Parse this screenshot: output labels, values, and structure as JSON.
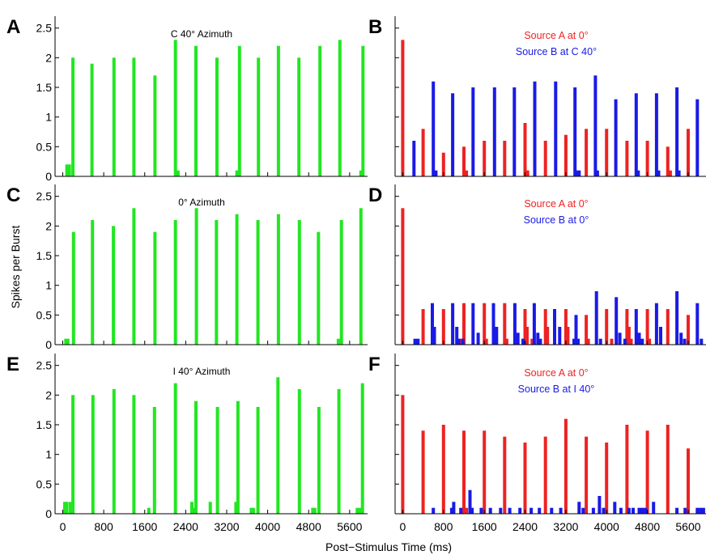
{
  "figure": {
    "ylabel": "Spikes per Burst",
    "xlabel": "Post−Stimulus Time (ms)",
    "x_ticks": [
      "0",
      "800",
      "1600",
      "2400",
      "3200",
      "4000",
      "4800",
      "5600"
    ],
    "y_ticks": [
      "0",
      "0.5",
      "1",
      "1.5",
      "2",
      "2.5"
    ],
    "colors": {
      "green": "#22e622",
      "red": "#ee2222",
      "blue": "#1a1ae6",
      "axis": "#000000"
    }
  },
  "chart_data": [
    {
      "panel": "A",
      "type": "bar",
      "title": "C 40° Azimuth",
      "xlim": [
        -150,
        5950
      ],
      "ylim": [
        0,
        2.7
      ],
      "series": [
        {
          "color": "#22e622",
          "values": [
            [
              80,
              0.2
            ],
            [
              130,
              0.2
            ],
            [
              200,
              2.0
            ],
            [
              570,
              1.9
            ],
            [
              1000,
              2.0
            ],
            [
              1390,
              2.0
            ],
            [
              1800,
              1.7
            ],
            [
              2200,
              2.3
            ],
            [
              2250,
              0.1
            ],
            [
              2600,
              2.2
            ],
            [
              3010,
              2.0
            ],
            [
              3400,
              0.1
            ],
            [
              3450,
              2.2
            ],
            [
              3820,
              2.0
            ],
            [
              4210,
              2.2
            ],
            [
              4610,
              2.0
            ],
            [
              5020,
              2.2
            ],
            [
              5410,
              2.3
            ],
            [
              5820,
              0.1
            ],
            [
              5860,
              2.2
            ]
          ]
        }
      ]
    },
    {
      "panel": "B",
      "type": "bar",
      "title": "",
      "legend": [
        "Source A at 0°",
        "Source B at C 40°"
      ],
      "xlim": [
        -150,
        5950
      ],
      "ylim": [
        0,
        2.7
      ],
      "series": [
        {
          "color": "#ee2222",
          "values": [
            [
              0,
              2.3
            ],
            [
              400,
              0.8
            ],
            [
              800,
              0.4
            ],
            [
              1200,
              0.5
            ],
            [
              1250,
              0.1
            ],
            [
              1600,
              0.6
            ],
            [
              2000,
              0.6
            ],
            [
              2400,
              0.9
            ],
            [
              2450,
              0.1
            ],
            [
              2800,
              0.6
            ],
            [
              3200,
              0.7
            ],
            [
              3600,
              0.8
            ],
            [
              4000,
              0.8
            ],
            [
              4400,
              0.6
            ],
            [
              4800,
              0.6
            ],
            [
              5200,
              0.5
            ],
            [
              5250,
              0.1
            ],
            [
              5600,
              0.8
            ]
          ]
        },
        {
          "color": "#1a1ae6",
          "values": [
            [
              220,
              0.6
            ],
            [
              600,
              1.6
            ],
            [
              650,
              0.1
            ],
            [
              980,
              1.4
            ],
            [
              1380,
              1.5
            ],
            [
              1800,
              1.5
            ],
            [
              2190,
              1.5
            ],
            [
              2590,
              1.6
            ],
            [
              3000,
              1.6
            ],
            [
              3380,
              1.5
            ],
            [
              3420,
              0.1
            ],
            [
              3460,
              0.1
            ],
            [
              3780,
              1.7
            ],
            [
              3820,
              0.1
            ],
            [
              4180,
              1.3
            ],
            [
              4580,
              1.4
            ],
            [
              4620,
              0.1
            ],
            [
              4980,
              1.4
            ],
            [
              5020,
              0.1
            ],
            [
              5380,
              1.5
            ],
            [
              5420,
              0.1
            ],
            [
              5780,
              1.3
            ]
          ]
        }
      ]
    },
    {
      "panel": "C",
      "type": "bar",
      "title": "0° Azimuth",
      "xlim": [
        -150,
        5950
      ],
      "ylim": [
        0,
        2.7
      ],
      "series": [
        {
          "color": "#22e622",
          "values": [
            [
              60,
              0.1
            ],
            [
              100,
              0.1
            ],
            [
              210,
              1.9
            ],
            [
              580,
              2.1
            ],
            [
              990,
              2.0
            ],
            [
              1390,
              2.3
            ],
            [
              1800,
              1.9
            ],
            [
              2200,
              2.1
            ],
            [
              2610,
              2.3
            ],
            [
              3000,
              2.1
            ],
            [
              3400,
              2.2
            ],
            [
              3810,
              2.1
            ],
            [
              4210,
              2.2
            ],
            [
              4620,
              2.1
            ],
            [
              4990,
              1.9
            ],
            [
              5380,
              0.1
            ],
            [
              5440,
              2.1
            ],
            [
              5820,
              2.3
            ]
          ]
        }
      ]
    },
    {
      "panel": "D",
      "type": "bar",
      "title": "",
      "legend": [
        "Source A at 0°",
        "Source B at  0°"
      ],
      "xlim": [
        -150,
        5950
      ],
      "ylim": [
        0,
        2.7
      ],
      "series": [
        {
          "color": "#ee2222",
          "values": [
            [
              0,
              2.3
            ],
            [
              400,
              0.6
            ],
            [
              800,
              0.6
            ],
            [
              1140,
              0.1
            ],
            [
              1200,
              0.7
            ],
            [
              1600,
              0.7
            ],
            [
              1640,
              0.1
            ],
            [
              2000,
              0.7
            ],
            [
              2040,
              0.1
            ],
            [
              2400,
              0.6
            ],
            [
              2440,
              0.3
            ],
            [
              2540,
              0.1
            ],
            [
              2800,
              0.6
            ],
            [
              2840,
              0.3
            ],
            [
              3200,
              0.6
            ],
            [
              3240,
              0.3
            ],
            [
              3600,
              0.5
            ],
            [
              3640,
              0.1
            ],
            [
              4000,
              0.6
            ],
            [
              4100,
              0.1
            ],
            [
              4400,
              0.6
            ],
            [
              4440,
              0.3
            ],
            [
              4480,
              0.1
            ],
            [
              4800,
              0.6
            ],
            [
              4840,
              0.1
            ],
            [
              5200,
              0.6
            ],
            [
              5600,
              0.5
            ]
          ]
        },
        {
          "color": "#1a1ae6",
          "values": [
            [
              240,
              0.1
            ],
            [
              300,
              0.1
            ],
            [
              580,
              0.7
            ],
            [
              620,
              0.3
            ],
            [
              980,
              0.7
            ],
            [
              1060,
              0.3
            ],
            [
              1100,
              0.1
            ],
            [
              1180,
              0.1
            ],
            [
              1380,
              0.7
            ],
            [
              1480,
              0.2
            ],
            [
              1780,
              0.7
            ],
            [
              1840,
              0.3
            ],
            [
              2200,
              0.7
            ],
            [
              2260,
              0.2
            ],
            [
              2360,
              0.1
            ],
            [
              2580,
              0.7
            ],
            [
              2650,
              0.2
            ],
            [
              2700,
              0.1
            ],
            [
              2980,
              0.6
            ],
            [
              3080,
              0.3
            ],
            [
              3360,
              0.1
            ],
            [
              3400,
              0.5
            ],
            [
              3440,
              0.1
            ],
            [
              3800,
              0.9
            ],
            [
              3880,
              0.1
            ],
            [
              4190,
              0.8
            ],
            [
              4260,
              0.2
            ],
            [
              4360,
              0.1
            ],
            [
              4580,
              0.6
            ],
            [
              4640,
              0.2
            ],
            [
              4700,
              0.1
            ],
            [
              4980,
              0.7
            ],
            [
              5060,
              0.3
            ],
            [
              5380,
              0.9
            ],
            [
              5460,
              0.2
            ],
            [
              5530,
              0.1
            ],
            [
              5780,
              0.7
            ],
            [
              5860,
              0.1
            ]
          ]
        }
      ]
    },
    {
      "panel": "E",
      "type": "bar",
      "title": "I 40° Azimuth",
      "xlim": [
        -150,
        5950
      ],
      "ylim": [
        0,
        2.7
      ],
      "series": [
        {
          "color": "#22e622",
          "values": [
            [
              40,
              0.2
            ],
            [
              80,
              0.2
            ],
            [
              150,
              0.2
            ],
            [
              200,
              2.0
            ],
            [
              590,
              2.0
            ],
            [
              1000,
              2.1
            ],
            [
              1390,
              2.0
            ],
            [
              1680,
              0.1
            ],
            [
              1790,
              1.8
            ],
            [
              2200,
              2.2
            ],
            [
              2520,
              0.2
            ],
            [
              2580,
              0.1
            ],
            [
              2600,
              1.9
            ],
            [
              2880,
              0.2
            ],
            [
              3020,
              1.8
            ],
            [
              3380,
              0.2
            ],
            [
              3420,
              1.9
            ],
            [
              3680,
              0.1
            ],
            [
              3720,
              0.1
            ],
            [
              3810,
              1.8
            ],
            [
              4200,
              2.3
            ],
            [
              4620,
              2.1
            ],
            [
              4880,
              0.1
            ],
            [
              4920,
              0.1
            ],
            [
              5000,
              1.8
            ],
            [
              5390,
              2.1
            ],
            [
              5750,
              0.1
            ],
            [
              5810,
              0.1
            ],
            [
              5850,
              2.2
            ]
          ]
        }
      ]
    },
    {
      "panel": "F",
      "type": "bar",
      "title": "",
      "legend": [
        "Source A at 0°",
        "Source B at I 40°"
      ],
      "xlim": [
        -150,
        5950
      ],
      "ylim": [
        0,
        2.7
      ],
      "series": [
        {
          "color": "#ee2222",
          "values": [
            [
              0,
              2.0
            ],
            [
              400,
              1.4
            ],
            [
              800,
              1.5
            ],
            [
              1200,
              1.4
            ],
            [
              1250,
              0.1
            ],
            [
              1600,
              1.4
            ],
            [
              2000,
              1.3
            ],
            [
              2400,
              1.2
            ],
            [
              2800,
              1.3
            ],
            [
              3200,
              1.6
            ],
            [
              3600,
              1.3
            ],
            [
              4000,
              1.2
            ],
            [
              4400,
              1.5
            ],
            [
              4800,
              1.4
            ],
            [
              5200,
              1.5
            ],
            [
              5600,
              1.1
            ]
          ]
        },
        {
          "color": "#1a1ae6",
          "values": [
            [
              600,
              0.1
            ],
            [
              960,
              0.1
            ],
            [
              1000,
              0.2
            ],
            [
              1140,
              0.1
            ],
            [
              1320,
              0.4
            ],
            [
              1360,
              0.1
            ],
            [
              1540,
              0.1
            ],
            [
              1720,
              0.1
            ],
            [
              1920,
              0.1
            ],
            [
              2100,
              0.1
            ],
            [
              2300,
              0.1
            ],
            [
              2520,
              0.1
            ],
            [
              2680,
              0.1
            ],
            [
              2920,
              0.1
            ],
            [
              3100,
              0.1
            ],
            [
              3460,
              0.2
            ],
            [
              3540,
              0.1
            ],
            [
              3740,
              0.1
            ],
            [
              3860,
              0.3
            ],
            [
              3940,
              0.1
            ],
            [
              4160,
              0.2
            ],
            [
              4280,
              0.1
            ],
            [
              4440,
              0.1
            ],
            [
              4520,
              0.1
            ],
            [
              4640,
              0.1
            ],
            [
              4700,
              0.1
            ],
            [
              4760,
              0.1
            ],
            [
              4920,
              0.2
            ],
            [
              5380,
              0.1
            ],
            [
              5540,
              0.1
            ],
            [
              5780,
              0.1
            ],
            [
              5840,
              0.1
            ],
            [
              5900,
              0.1
            ]
          ]
        }
      ]
    }
  ]
}
